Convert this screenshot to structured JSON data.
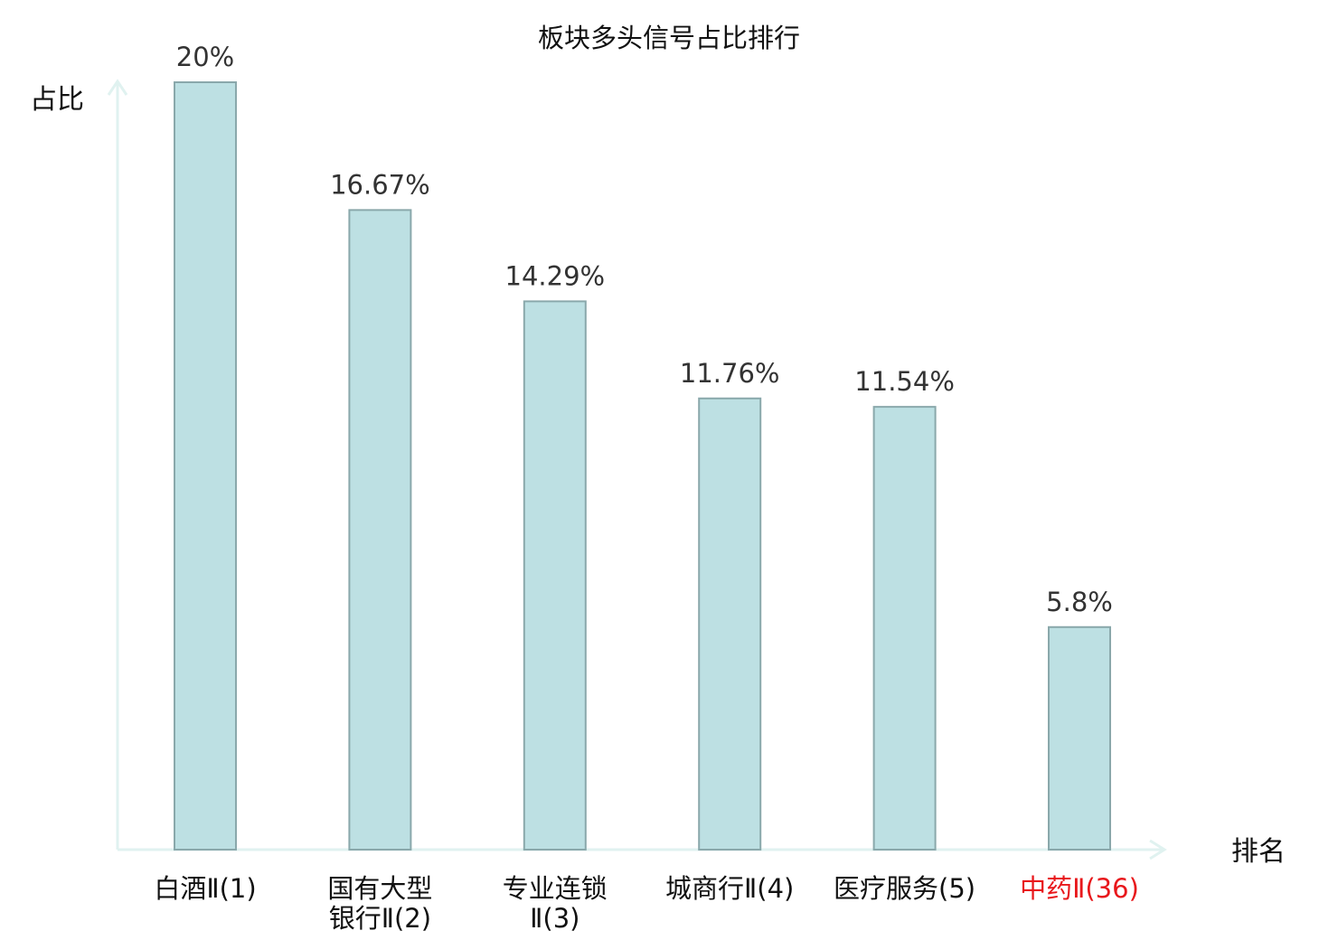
{
  "chart_data": {
    "type": "bar",
    "title": "板块多头信号占比排行",
    "ylabel": "占比",
    "xlabel": "排名",
    "categories": [
      [
        "白酒Ⅱ(1)"
      ],
      [
        "国有大型",
        "银行Ⅱ(2)"
      ],
      [
        "专业连锁",
        "Ⅱ(3)"
      ],
      [
        "城商行Ⅱ(4)"
      ],
      [
        "医疗服务(5)"
      ],
      [
        "中药Ⅱ(36)"
      ]
    ],
    "values": [
      20,
      16.67,
      14.29,
      11.76,
      11.54,
      5.8
    ],
    "value_labels": [
      "20%",
      "16.67%",
      "14.29%",
      "11.76%",
      "11.54%",
      "5.8%"
    ],
    "ylim": [
      0,
      20
    ],
    "grid": false,
    "highlight_index": 5,
    "colors": {
      "bar_fill": "#bde0e3",
      "bar_stroke": "#8aa8ab",
      "axis": "#e0f2f0",
      "highlight_text": "#e8171b"
    }
  }
}
